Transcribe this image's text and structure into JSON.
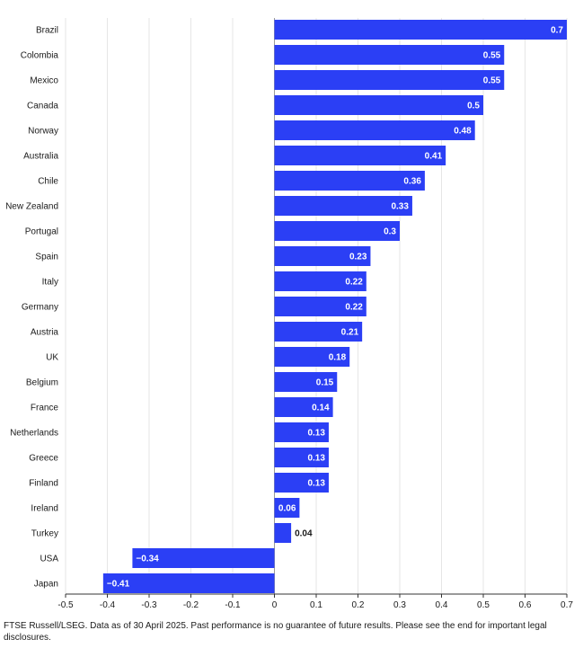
{
  "chart_data": {
    "type": "bar",
    "orientation": "horizontal",
    "categories": [
      "Brazil",
      "Colombia",
      "Mexico",
      "Canada",
      "Norway",
      "Australia",
      "Chile",
      "New Zealand",
      "Portugal",
      "Spain",
      "Italy",
      "Germany",
      "Austria",
      "UK",
      "Belgium",
      "France",
      "Netherlands",
      "Greece",
      "Finland",
      "Ireland",
      "Turkey",
      "USA",
      "Japan"
    ],
    "values": [
      0.7,
      0.55,
      0.55,
      0.5,
      0.48,
      0.41,
      0.36,
      0.33,
      0.3,
      0.23,
      0.22,
      0.22,
      0.21,
      0.18,
      0.15,
      0.14,
      0.13,
      0.13,
      0.13,
      0.06,
      0.04,
      -0.34,
      -0.41
    ],
    "value_labels": [
      "0.7",
      "0.55",
      "0.55",
      "0.5",
      "0.48",
      "0.41",
      "0.36",
      "0.33",
      "0.3",
      "0.23",
      "0.22",
      "0.22",
      "0.21",
      "0.18",
      "0.15",
      "0.14",
      "0.13",
      "0.13",
      "0.13",
      "0.06",
      "0.04",
      "−0.34",
      "−0.41"
    ],
    "xlim": [
      -0.5,
      0.7
    ],
    "xticks": [
      -0.5,
      -0.4,
      -0.3,
      -0.2,
      -0.1,
      0,
      0.1,
      0.2,
      0.3,
      0.4,
      0.5,
      0.6,
      0.7
    ],
    "xtick_labels": [
      "-0.5",
      "-0.4",
      "-0.3",
      "-0.2",
      "-0.1",
      "0",
      "0.1",
      "0.2",
      "0.3",
      "0.4",
      "0.5",
      "0.6",
      "0.7"
    ],
    "grid": true,
    "bar_color": "#2b3ff5",
    "title": "",
    "xlabel": "",
    "ylabel": ""
  },
  "footnote": "FTSE Russell/LSEG. Data as of 30 April 2025. Past performance is no guarantee of future results. Please see the end for important legal disclosures."
}
